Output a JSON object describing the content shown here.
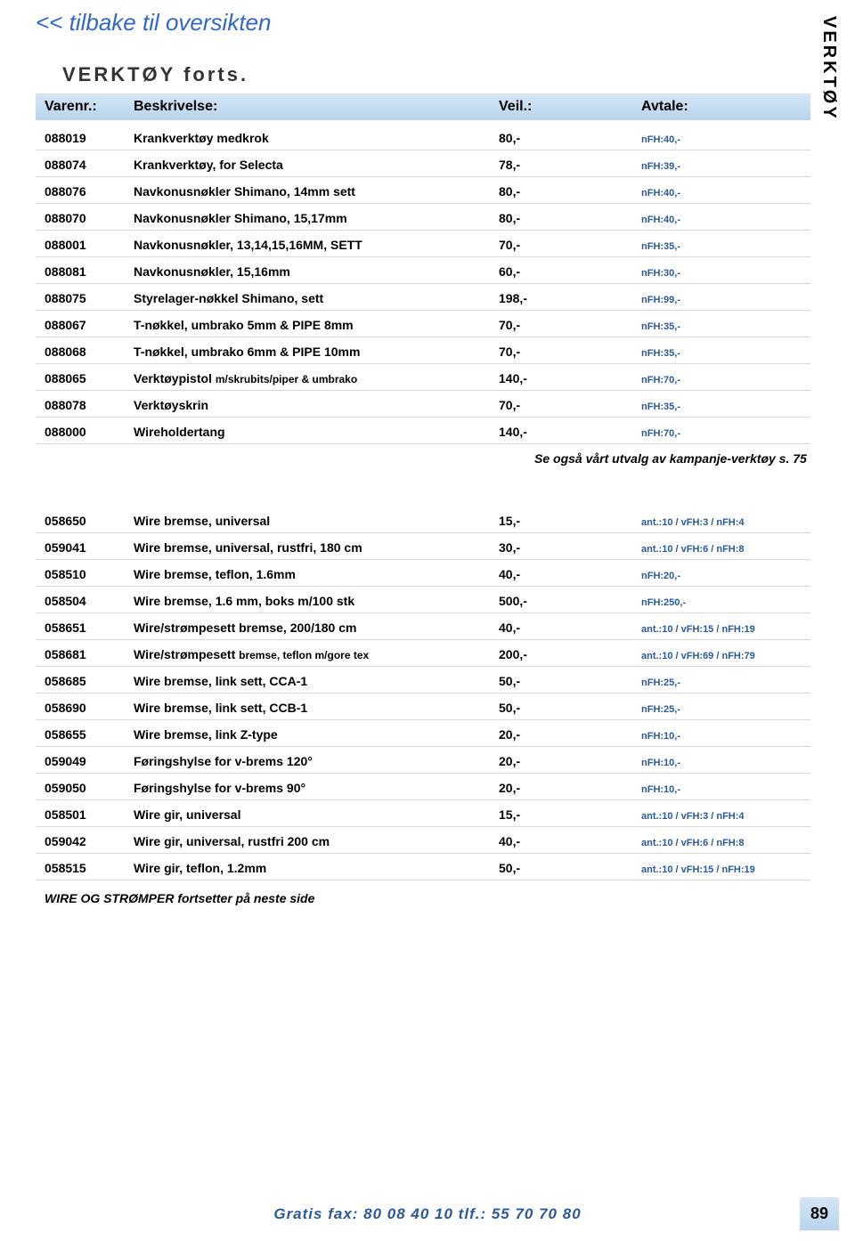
{
  "back_link": "<< tilbake til oversikten",
  "side_tab": "VERKTØY",
  "section1": {
    "title": "VERKTØY forts.",
    "headers": {
      "id": "Varenr.:",
      "desc": "Beskrivelse:",
      "price": "Veil.:",
      "note": "Avtale:"
    },
    "rows": [
      {
        "id": "088019",
        "desc": "Krankverktøy medkrok",
        "price": "80,-",
        "note": "nFH:40,-"
      },
      {
        "id": "088074",
        "desc": "Krankverktøy, for Selecta",
        "price": "78,-",
        "note": "nFH:39,-"
      },
      {
        "id": "088076",
        "desc": "Navkonusnøkler Shimano, 14mm sett",
        "price": "80,-",
        "note": "nFH:40,-"
      },
      {
        "id": "088070",
        "desc": "Navkonusnøkler Shimano, 15,17mm",
        "price": "80,-",
        "note": "nFH:40,-"
      },
      {
        "id": "088001",
        "desc": "Navkonusnøkler, 13,14,15,16MM, SETT",
        "price": "70,-",
        "note": "nFH:35,-"
      },
      {
        "id": "088081",
        "desc": "Navkonusnøkler, 15,16mm",
        "price": "60,-",
        "note": "nFH:30,-"
      },
      {
        "id": "088075",
        "desc": "Styrelager-nøkkel Shimano, sett",
        "price": "198,-",
        "note": "nFH:99,-"
      },
      {
        "id": "088067",
        "desc": "T-nøkkel, umbrako 5mm & PIPE 8mm",
        "price": "70,-",
        "note": "nFH:35,-"
      },
      {
        "id": "088068",
        "desc": "T-nøkkel, umbrako 6mm & PIPE 10mm",
        "price": "70,-",
        "note": "nFH:35,-"
      },
      {
        "id": "088065",
        "desc": "Verktøypistol ",
        "desc_sub": "m/skrubits/piper & umbrako",
        "price": "140,-",
        "note": "nFH:70,-"
      },
      {
        "id": "088078",
        "desc": "Verktøyskrin",
        "price": "70,-",
        "note": "nFH:35,-"
      },
      {
        "id": "088000",
        "desc": "Wireholdertang",
        "price": "140,-",
        "note": "nFH:70,-"
      }
    ],
    "note": "Se også vårt utvalg av kampanje-verktøy s. 75"
  },
  "section2": {
    "rows": [
      {
        "id": "058650",
        "desc": "Wire bremse, universal",
        "price": "15,-",
        "note": "ant.:10 / vFH:3 / nFH:4"
      },
      {
        "id": "059041",
        "desc": "Wire bremse, universal, rustfri, 180 cm",
        "price": "30,-",
        "note": "ant.:10 / vFH:6 / nFH:8"
      },
      {
        "id": "058510",
        "desc": "Wire bremse, teflon, 1.6mm",
        "price": "40,-",
        "note": "nFH:20,-"
      },
      {
        "id": "058504",
        "desc": "Wire bremse, 1.6 mm, boks m/100 stk",
        "price": "500,-",
        "note": "nFH:250,-"
      },
      {
        "id": "058651",
        "desc": "Wire/strømpesett bremse, 200/180 cm",
        "price": "40,-",
        "note": "ant.:10 / vFH:15 / nFH:19"
      },
      {
        "id": "058681",
        "desc": "Wire/strømpesett ",
        "desc_sub": "bremse, teflon m/gore tex",
        "price": "200,-",
        "note": "ant.:10 / vFH:69 / nFH:79"
      },
      {
        "id": "058685",
        "desc": "Wire bremse, link sett, CCA-1",
        "price": "50,-",
        "note": "nFH:25,-"
      },
      {
        "id": "058690",
        "desc": "Wire bremse, link sett, CCB-1",
        "price": "50,-",
        "note": "nFH:25,-"
      },
      {
        "id": "058655",
        "desc": "Wire bremse, link Z-type",
        "price": "20,-",
        "note": "nFH:10,-"
      },
      {
        "id": "059049",
        "desc": "Føringshylse for v-brems 120°",
        "price": "20,-",
        "note": "nFH:10,-"
      },
      {
        "id": "059050",
        "desc": "Føringshylse for v-brems 90°",
        "price": "20,-",
        "note": "nFH:10,-"
      },
      {
        "id": "058501",
        "desc": "Wire gir, universal",
        "price": "15,-",
        "note": "ant.:10 / vFH:3 / nFH:4"
      },
      {
        "id": "059042",
        "desc": "Wire gir, universal, rustfri 200 cm",
        "price": "40,-",
        "note": "ant.:10 / vFH:6 / nFH:8"
      },
      {
        "id": "058515",
        "desc": "Wire gir, teflon, 1.2mm",
        "price": "50,-",
        "note": "ant.:10 / vFH:15 / nFH:19"
      }
    ],
    "footnote": "WIRE OG STRØMPER fortsetter på neste side"
  },
  "footer": "Gratis fax: 80 08 40 10   tlf.: 55 70 70 80",
  "page_number": "89"
}
